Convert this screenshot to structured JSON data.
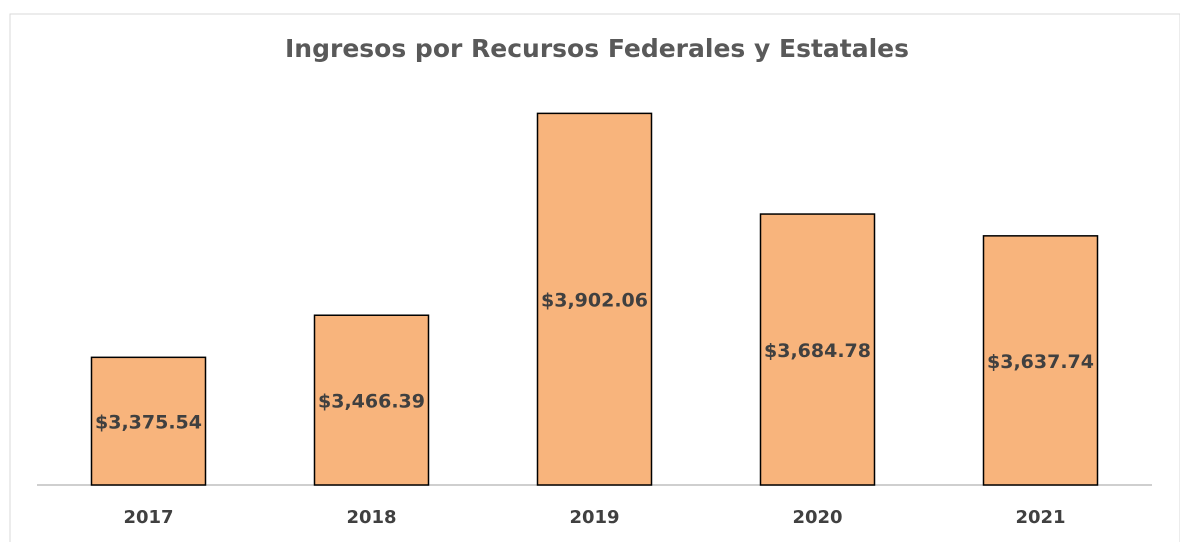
{
  "chart_data": {
    "type": "bar",
    "title": "Ingresos por Recursos Federales y Estatales",
    "categories": [
      "2017",
      "2018",
      "2019",
      "2020",
      "2021"
    ],
    "values": [
      3375.54,
      3466.39,
      3902.06,
      3684.78,
      3637.74
    ],
    "value_labels": [
      "$3,375.54",
      "$3,466.39",
      "$3,902.06",
      "$3,684.78",
      "$3,637.74"
    ],
    "color": "#f8b47c",
    "ylim": [
      3100,
      4000
    ]
  }
}
